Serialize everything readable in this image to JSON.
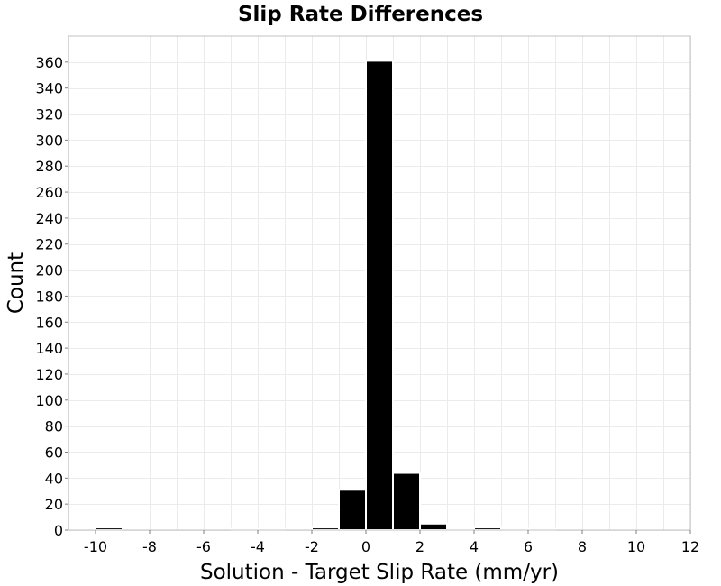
{
  "chart_data": {
    "type": "bar",
    "title": "Slip Rate Differences",
    "xlabel": "Solution - Target Slip Rate (mm/yr)",
    "ylabel": "Count",
    "xlim": [
      -11,
      12
    ],
    "ylim": [
      0,
      380
    ],
    "x_ticks": [
      -10,
      -8,
      -6,
      -4,
      -2,
      0,
      2,
      4,
      6,
      8,
      10,
      12
    ],
    "x_tick_labels": [
      "-10",
      "-8",
      "-6",
      "-4",
      "-2",
      "0",
      "2",
      "4",
      "6",
      "8",
      "10",
      "12"
    ],
    "y_ticks": [
      0,
      20,
      40,
      60,
      80,
      100,
      120,
      140,
      160,
      180,
      200,
      220,
      240,
      260,
      280,
      300,
      320,
      340,
      360
    ],
    "y_tick_labels": [
      "0",
      "20",
      "40",
      "60",
      "80",
      "100",
      "120",
      "140",
      "160",
      "180",
      "200",
      "220",
      "240",
      "260",
      "280",
      "300",
      "320",
      "340",
      "360"
    ],
    "bin_width": 1,
    "bins": [
      {
        "x": -9.5,
        "count": 2
      },
      {
        "x": -4.5,
        "count": 1
      },
      {
        "x": -3.5,
        "count": 1
      },
      {
        "x": -1.5,
        "count": 2
      },
      {
        "x": -0.5,
        "count": 31
      },
      {
        "x": 0.5,
        "count": 361
      },
      {
        "x": 1.5,
        "count": 44
      },
      {
        "x": 2.5,
        "count": 5
      },
      {
        "x": 3.5,
        "count": 1
      },
      {
        "x": 4.5,
        "count": 2
      },
      {
        "x": 5.5,
        "count": 1
      },
      {
        "x": 6.5,
        "count": 1
      }
    ],
    "bar_color": "#000000",
    "bar_edge_color": "#ffffff",
    "grid": true,
    "legend": "none"
  }
}
